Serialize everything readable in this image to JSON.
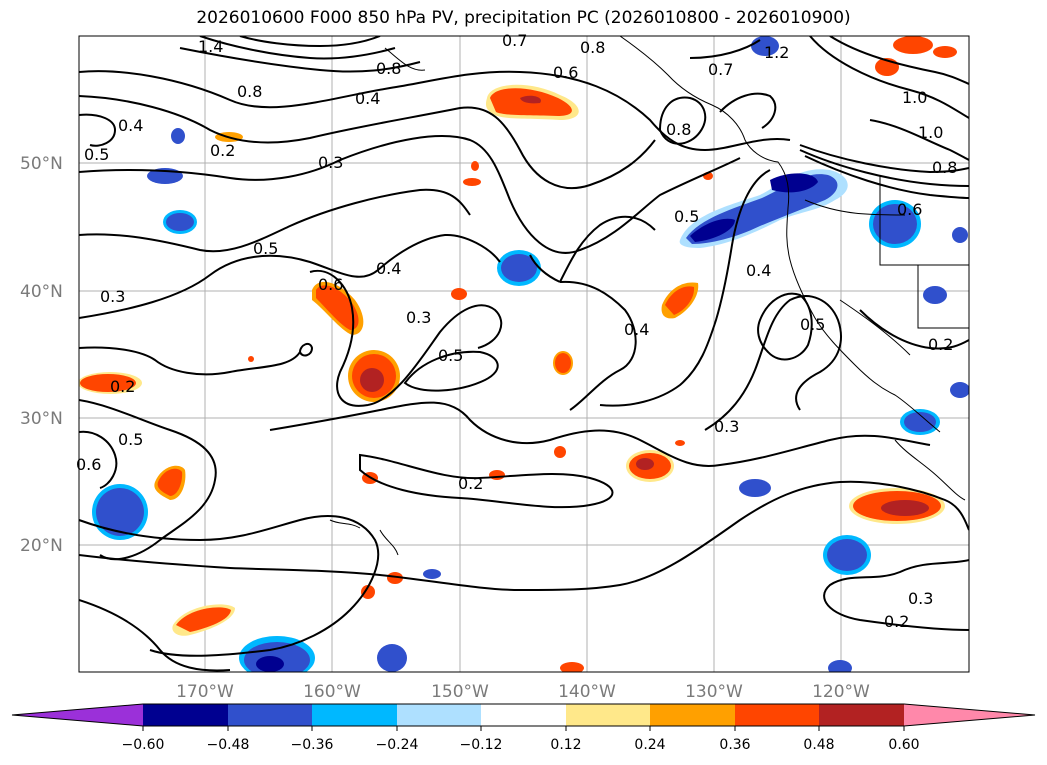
{
  "title": "2026010600 F000 850 hPa PV, precipitation PC (2026010800 - 2026010900)",
  "map": {
    "lat_labels": [
      "50°N",
      "40°N",
      "30°N",
      "20°N"
    ],
    "lon_labels": [
      "170°W",
      "160°W",
      "150°W",
      "140°W",
      "130°W",
      "120°W"
    ],
    "contour_labels": [
      "0.2",
      "0.2",
      "0.2",
      "0.2",
      "0.2",
      "0.3",
      "0.3",
      "0.3",
      "0.3",
      "0.3",
      "0.4",
      "0.4",
      "0.4",
      "0.4",
      "0.4",
      "0.5",
      "0.5",
      "0.5",
      "0.5",
      "0.5",
      "0.5",
      "0.6",
      "0.6",
      "0.6",
      "0.7",
      "0.7",
      "0.8",
      "0.8",
      "0.8",
      "0.8",
      "1.0",
      "1.0",
      "1.2",
      "1.4",
      "0.8",
      "0.6"
    ],
    "colors": {
      "land_lines": "#000000",
      "contours": "#000000",
      "grid": "#b0b0b0"
    }
  },
  "colorbar": {
    "ticks": [
      "−0.60",
      "−0.48",
      "−0.36",
      "−0.24",
      "−0.12",
      "0.12",
      "0.24",
      "0.36",
      "0.48",
      "0.60"
    ],
    "colors": [
      "#9b30d9",
      "#000090",
      "#3050cc",
      "#00b8ff",
      "#aee0ff",
      "#ffffff",
      "#ffe88a",
      "#ffa000",
      "#ff4500",
      "#b22222",
      "#ff88aa"
    ]
  }
}
